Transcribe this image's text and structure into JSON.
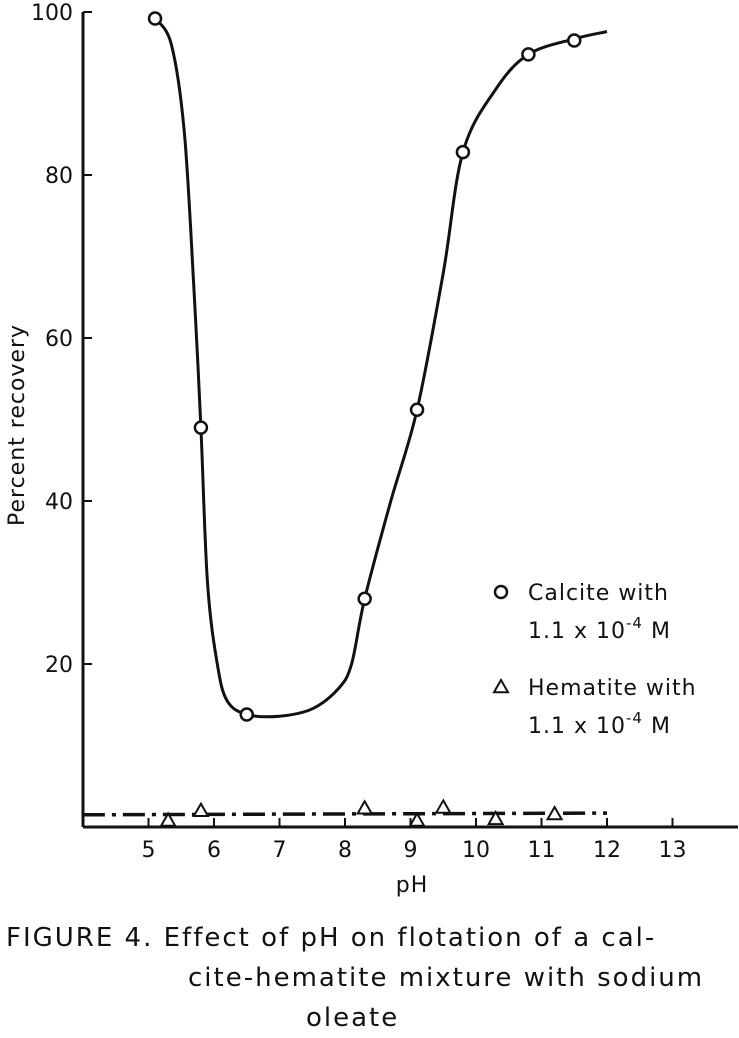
{
  "chart_data": {
    "type": "scatter",
    "xlabel": "pH",
    "ylabel": "Percent recovery",
    "xlim": [
      4,
      14
    ],
    "ylim": [
      0,
      100
    ],
    "x_ticks": [
      5,
      6,
      7,
      8,
      9,
      10,
      11,
      12,
      13
    ],
    "y_ticks": [
      20,
      40,
      60,
      80,
      100
    ],
    "legend_placement": "right",
    "series": [
      {
        "name_parts": [
          "Calcite with",
          "1.1 x 10",
          "-4",
          " M"
        ],
        "marker": "circle",
        "points": [
          [
            5.1,
            99.2
          ],
          [
            5.8,
            49
          ],
          [
            6.5,
            13.8
          ],
          [
            8.3,
            28
          ],
          [
            9.1,
            51.2
          ],
          [
            9.8,
            82.8
          ],
          [
            10.8,
            94.8
          ],
          [
            11.5,
            96.5
          ]
        ],
        "curve": [
          [
            5.1,
            99.2
          ],
          [
            5.35,
            96
          ],
          [
            5.55,
            85
          ],
          [
            5.7,
            65
          ],
          [
            5.8,
            49
          ],
          [
            5.9,
            30
          ],
          [
            6.05,
            20
          ],
          [
            6.2,
            15.5
          ],
          [
            6.5,
            13.8
          ],
          [
            7.0,
            13.6
          ],
          [
            7.5,
            14.5
          ],
          [
            7.9,
            17
          ],
          [
            8.1,
            20
          ],
          [
            8.3,
            28
          ],
          [
            8.7,
            40
          ],
          [
            9.1,
            51.2
          ],
          [
            9.5,
            68
          ],
          [
            9.8,
            82.8
          ],
          [
            10.3,
            90.5
          ],
          [
            10.8,
            94.8
          ],
          [
            11.5,
            96.7
          ],
          [
            12.0,
            97.6
          ]
        ]
      },
      {
        "name_parts": [
          "Hematite with",
          "1.1 x 10",
          "-4",
          " M"
        ],
        "marker": "triangle",
        "points": [
          [
            5.3,
            0.8
          ],
          [
            5.8,
            2.0
          ],
          [
            8.3,
            2.3
          ],
          [
            9.1,
            0.8
          ],
          [
            9.5,
            2.4
          ],
          [
            10.3,
            1.0
          ],
          [
            11.2,
            1.6
          ]
        ],
        "curve": [
          [
            4.0,
            1.5
          ],
          [
            12.0,
            1.7
          ]
        ]
      }
    ]
  },
  "caption": {
    "line1": "FIGURE 4.  Effect of pH on flotation of a cal-",
    "line2": "cite-hematite mixture with sodium",
    "line3": "oleate"
  }
}
